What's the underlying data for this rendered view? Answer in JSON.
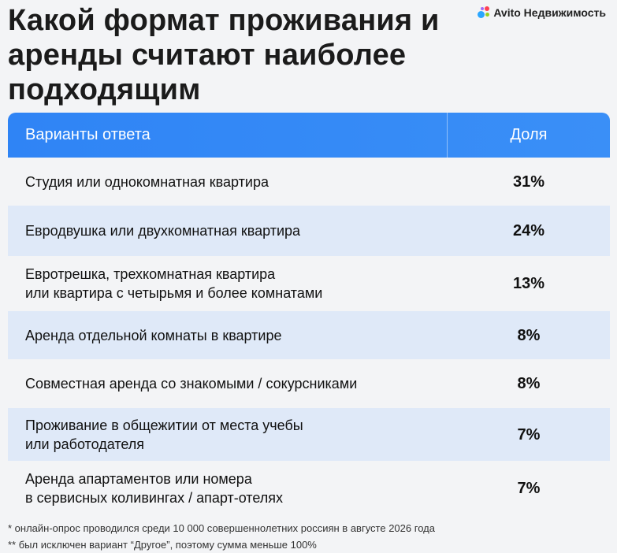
{
  "title": "Какой формат проживания и аренды считают наиболее подходящим",
  "brand": {
    "name": "Avito Недвижимость",
    "colors": [
      "#2aa6ff",
      "#ff4053",
      "#97cf26",
      "#a169f7"
    ]
  },
  "accent_color": "#2f84f5",
  "chart_data": {
    "type": "table",
    "columns": [
      "Варианты ответа",
      "Доля"
    ],
    "rows": [
      {
        "label_lines": [
          "Студия или однокомнатная квартира"
        ],
        "value": "31%"
      },
      {
        "label_lines": [
          "Евродвушка или двухкомнатная квартира"
        ],
        "value": "24%"
      },
      {
        "label_lines": [
          "Евротрешка, трехкомнатная квартира",
          "или квартира с четырьмя и более комнатами"
        ],
        "value": "13%"
      },
      {
        "label_lines": [
          "Аренда отдельной комнаты в квартире"
        ],
        "value": "8%"
      },
      {
        "label_lines": [
          "Совместная аренда со знакомыми / сокурсниками"
        ],
        "value": "8%"
      },
      {
        "label_lines": [
          "Проживание в общежитии от места учебы",
          "или работодателя"
        ],
        "value": "7%"
      },
      {
        "label_lines": [
          "Аренда апартаментов или номера",
          "в сервисных коливингах / апарт-отелях"
        ],
        "value": "7%"
      }
    ]
  },
  "footnotes": [
    "* онлайн-опрос проводился среди 10 000 совершеннолетних россиян в августе 2026 года",
    "** был исключен вариант “Другое”, поэтому сумма меньше 100%"
  ]
}
